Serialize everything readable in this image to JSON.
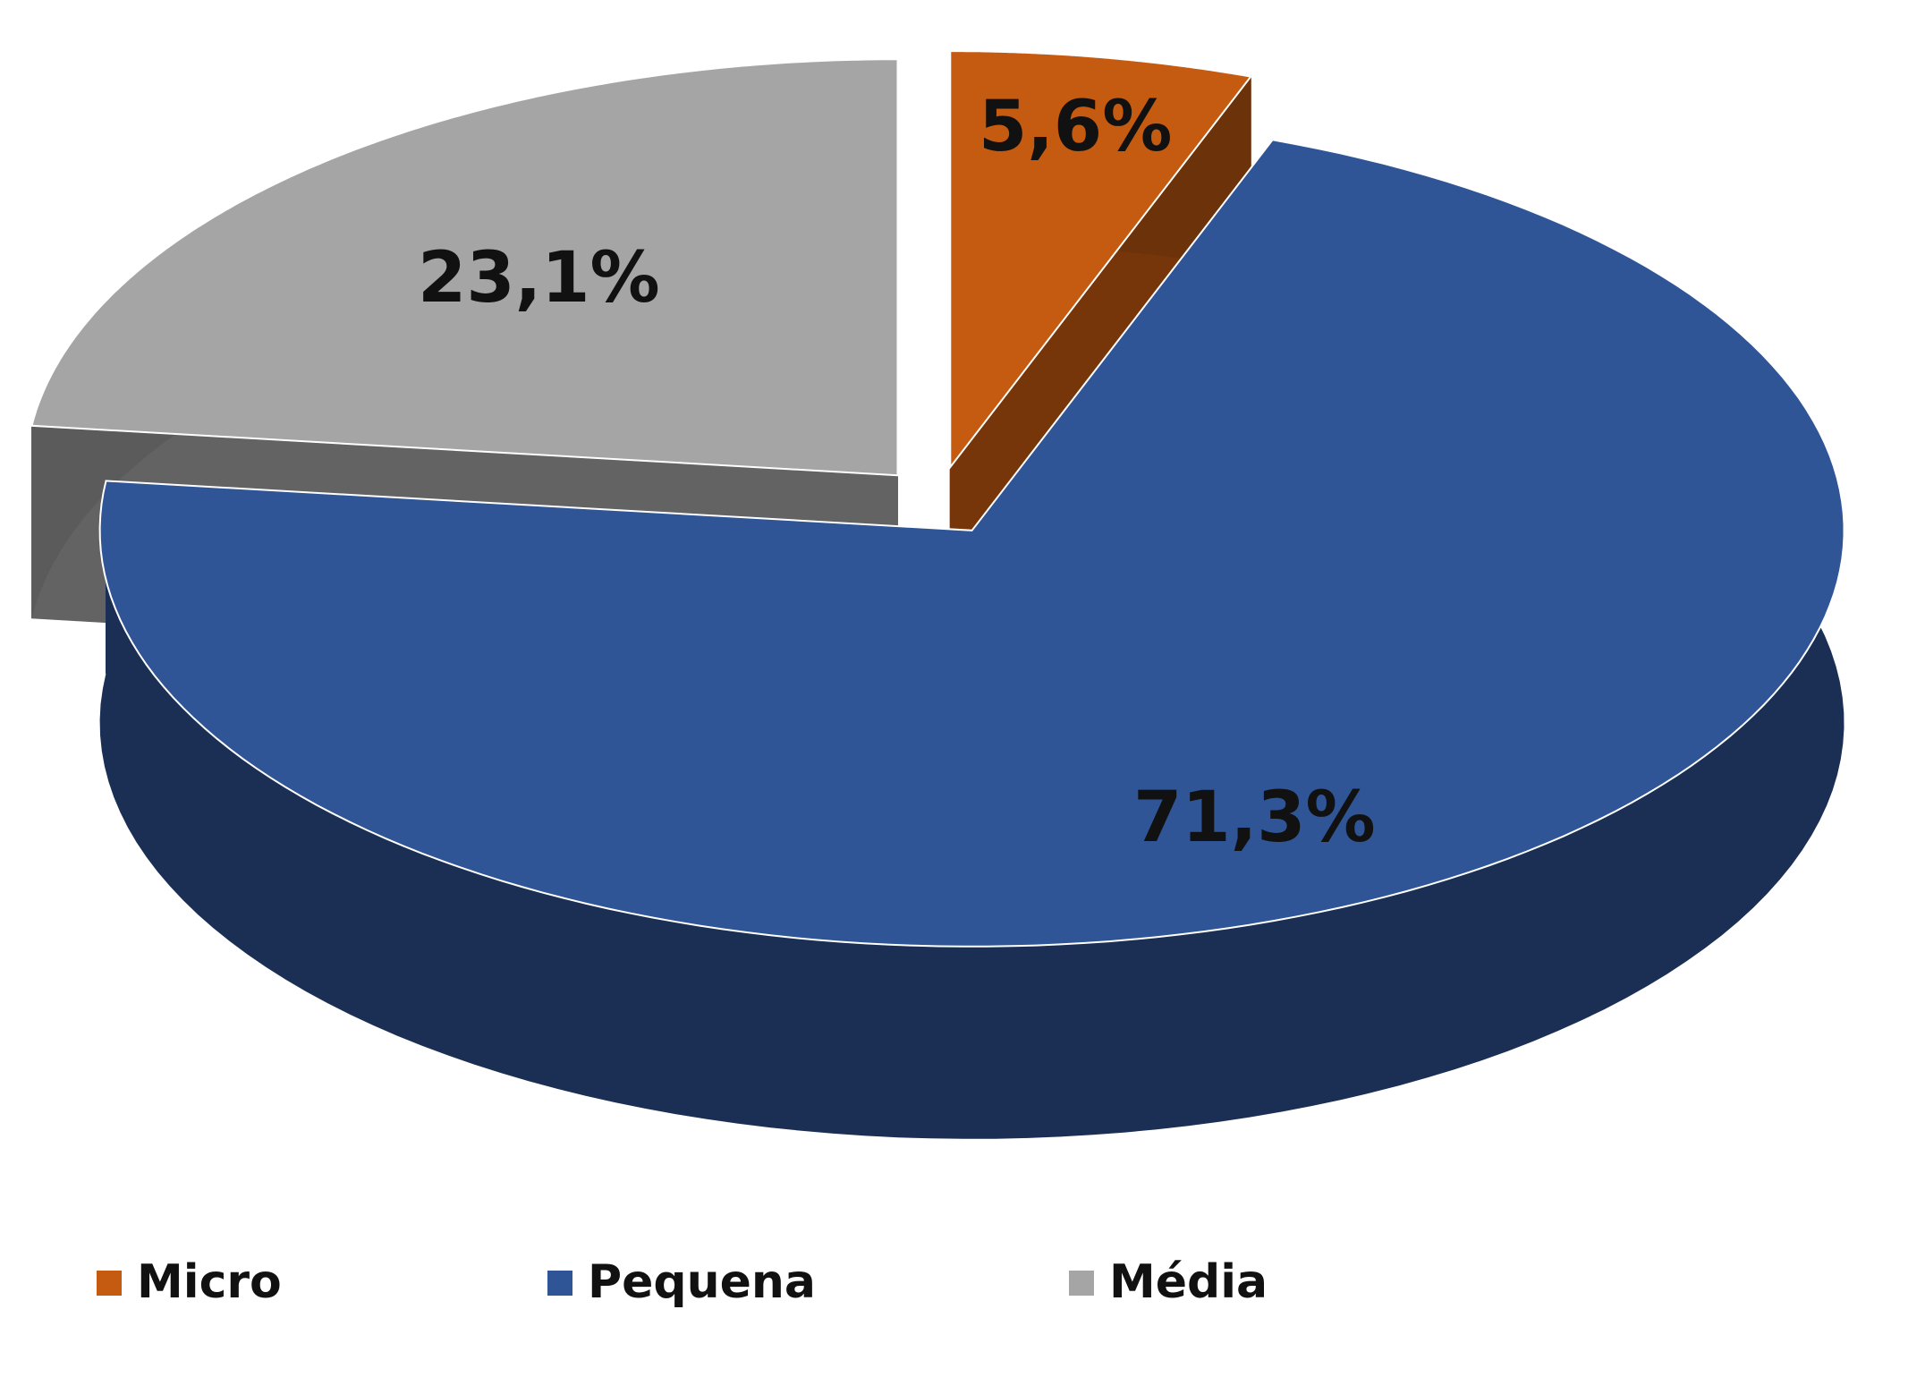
{
  "chart_data": {
    "type": "pie",
    "categories": [
      "Micro",
      "Pequena",
      "Média"
    ],
    "values": [
      5.6,
      71.3,
      23.1
    ],
    "value_labels": [
      "5,6%",
      "71,3%",
      "23,1%"
    ],
    "colors": [
      "#c55a11",
      "#2f5597",
      "#a5a5a5"
    ],
    "legend": "bottom"
  }
}
